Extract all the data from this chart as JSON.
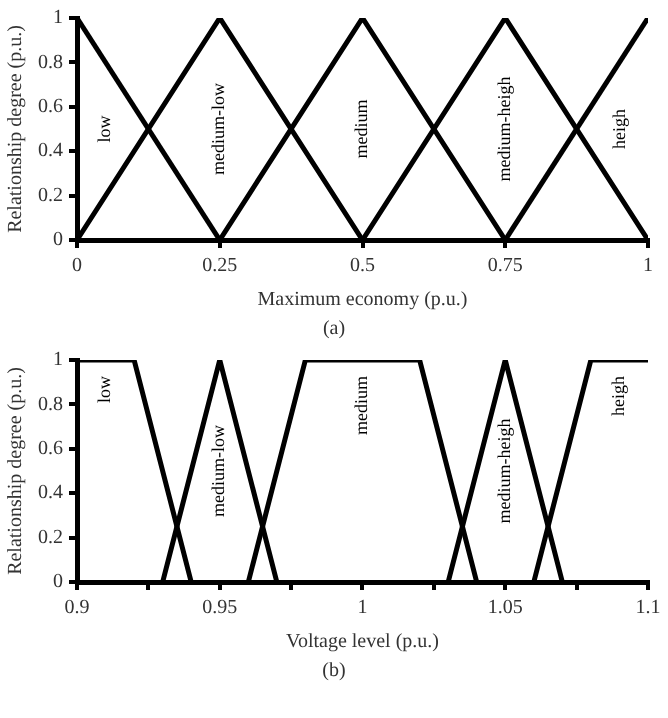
{
  "chart_data": [
    {
      "type": "line",
      "xlabel": "Maximum economy (p.u.)",
      "ylabel": "Relationship degree (p.u.)",
      "annotations": [
        "(a)"
      ],
      "legend": false,
      "grid": false,
      "marker": "none",
      "line_style": "solid",
      "xlim": [
        0,
        1
      ],
      "xticks": [
        0,
        0.25,
        0.5,
        0.75,
        1
      ],
      "ylim": [
        0,
        1
      ],
      "yticks": [
        0,
        0.2,
        0.4,
        0.6,
        0.8,
        1
      ],
      "series": [
        {
          "name": "low",
          "color": "#000000",
          "x": [
            0,
            0.25
          ],
          "values": [
            1,
            0
          ]
        },
        {
          "name": "medium-low",
          "color": "#000000",
          "x": [
            0,
            0.25,
            0.5
          ],
          "values": [
            0,
            1,
            0
          ]
        },
        {
          "name": "medium",
          "color": "#000000",
          "x": [
            0.25,
            0.5,
            0.75
          ],
          "values": [
            0,
            1,
            0
          ]
        },
        {
          "name": "medium-heigh",
          "color": "#000000",
          "x": [
            0.5,
            0.75,
            1
          ],
          "values": [
            0,
            1,
            0
          ]
        },
        {
          "name": "heigh",
          "color": "#000000",
          "x": [
            0.75,
            1
          ],
          "values": [
            0,
            1
          ]
        }
      ]
    },
    {
      "type": "line",
      "xlabel": "Voltage level (p.u.)",
      "ylabel": "Relationship degree (p.u.)",
      "annotations": [
        "(b)"
      ],
      "legend": false,
      "grid": false,
      "marker": "none",
      "line_style": "solid",
      "xlim": [
        0.9,
        1.1
      ],
      "xticks": [
        0.9,
        {
          "value": 0.925,
          "label": null
        },
        0.95,
        {
          "value": 0.975,
          "label": null
        },
        1,
        {
          "value": 1.025,
          "label": null
        },
        1.05,
        {
          "value": 1.075,
          "label": null
        },
        1.1
      ],
      "ylim": [
        0,
        1
      ],
      "yticks": [
        0,
        0.2,
        0.4,
        0.6,
        0.8,
        1
      ],
      "series": [
        {
          "name": "low",
          "color": "#000000",
          "x": [
            0.9,
            0.92,
            0.94
          ],
          "values": [
            1,
            1,
            0
          ]
        },
        {
          "name": "medium-low",
          "color": "#000000",
          "x": [
            0.93,
            0.95,
            0.97
          ],
          "values": [
            0,
            1,
            0
          ]
        },
        {
          "name": "medium",
          "color": "#000000",
          "x": [
            0.96,
            0.98,
            1.02,
            1.04
          ],
          "values": [
            0,
            1,
            1,
            0
          ]
        },
        {
          "name": "medium-heigh",
          "color": "#000000",
          "x": [
            1.03,
            1.05,
            1.07
          ],
          "values": [
            0,
            1,
            0
          ]
        },
        {
          "name": "heigh",
          "color": "#000000",
          "x": [
            1.06,
            1.08,
            1.1
          ],
          "values": [
            0,
            1,
            1
          ]
        }
      ]
    }
  ]
}
